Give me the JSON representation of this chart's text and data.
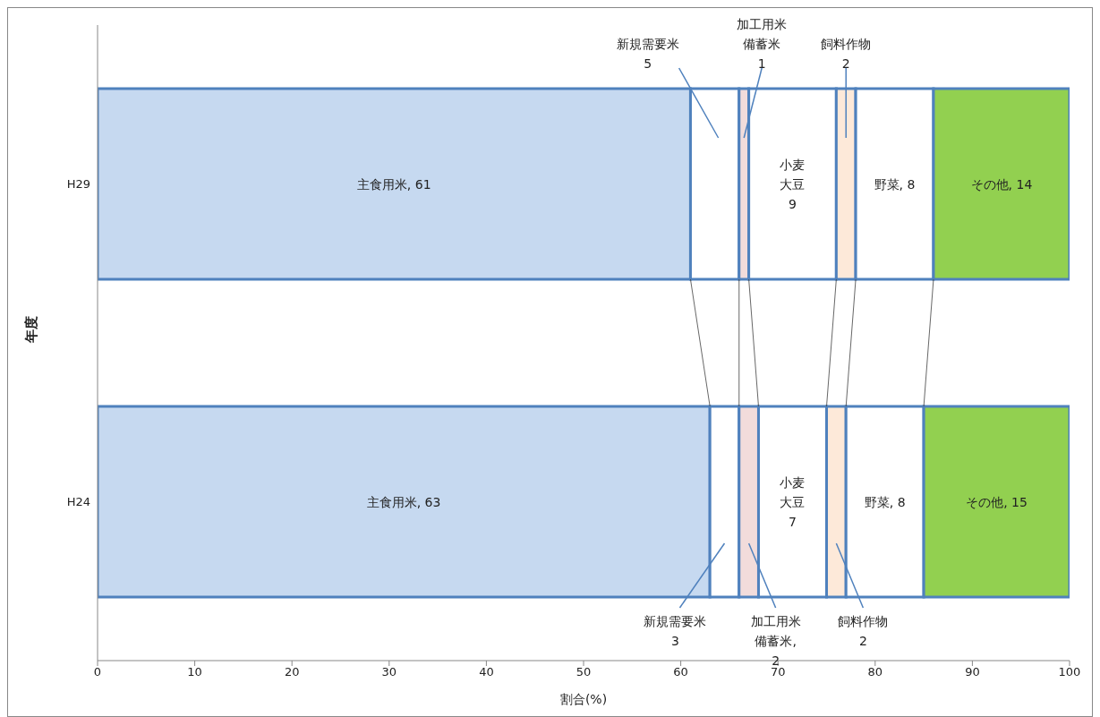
{
  "chart_data": {
    "type": "bar",
    "orientation": "horizontal",
    "stacked": true,
    "xlabel": "割合(%)",
    "ylabel": "年度",
    "categories": [
      "H29",
      "H24"
    ],
    "xlim": [
      0,
      100
    ],
    "xticks": [
      0,
      10,
      20,
      30,
      40,
      50,
      60,
      70,
      80,
      90,
      100
    ],
    "series": [
      {
        "color": "#c6d9f0",
        "values": [
          61,
          63
        ],
        "value_labels": [
          "主食用米, 61",
          "主食用米, 63"
        ]
      },
      {
        "color": "#ffffff",
        "values": [
          5,
          3
        ],
        "value_labels": [
          "新規需要米\n5",
          "新規需要米\n3"
        ]
      },
      {
        "color": "#f2dcdb",
        "values": [
          1,
          2
        ],
        "value_labels": [
          "加工用米備蓄米\n1",
          "加工用米備蓄米,\n2"
        ]
      },
      {
        "color": "#ffffff",
        "values": [
          9,
          7
        ],
        "value_labels": [
          "小麦大豆\n9",
          "小麦大豆\n7"
        ]
      },
      {
        "color": "#fde9d9",
        "values": [
          2,
          2
        ],
        "value_labels": [
          "飼料作物\n2",
          "飼料作物\n2"
        ]
      },
      {
        "color": "#ffffff",
        "values": [
          8,
          8
        ],
        "value_labels": [
          "野菜, 8",
          "野菜, 8"
        ]
      },
      {
        "color": "#92d050",
        "values": [
          14,
          15
        ],
        "value_labels": [
          "その他, 14",
          "その他, 15"
        ]
      }
    ]
  }
}
